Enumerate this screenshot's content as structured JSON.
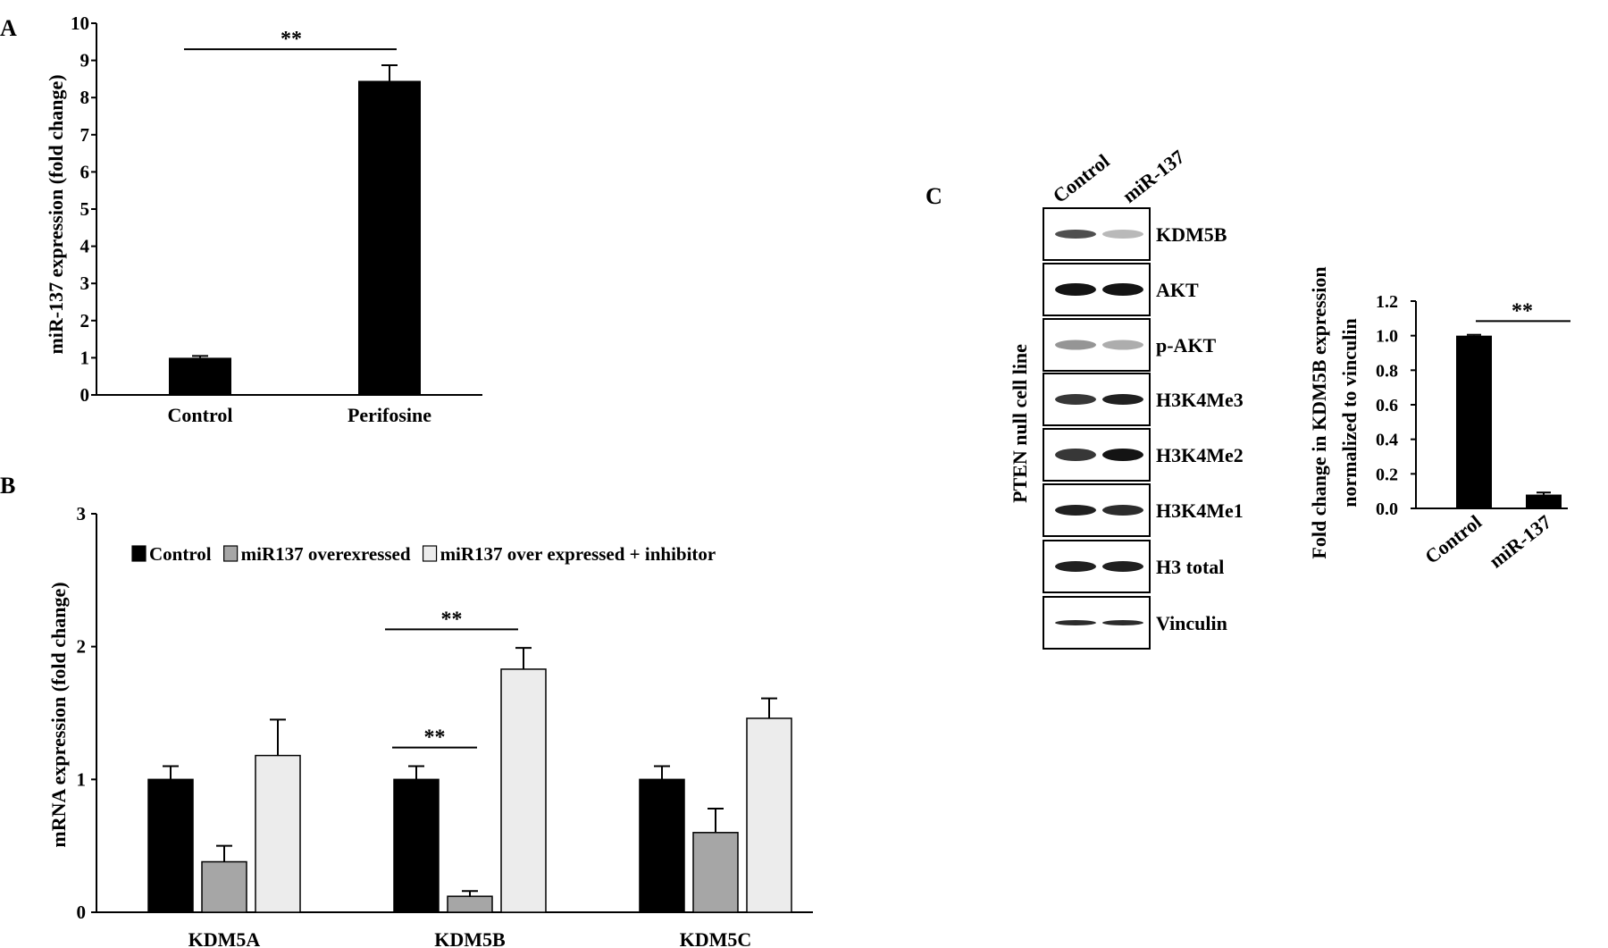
{
  "panels": {
    "a": "A",
    "b": "B",
    "c": "C"
  },
  "chart_data": [
    {
      "panel": "A",
      "type": "bar",
      "categories": [
        "Control",
        "Perifosine"
      ],
      "values": [
        1.0,
        8.45
      ],
      "errors": [
        0.05,
        0.42
      ],
      "ylabel": "miR-137 expression (fold change)",
      "yticks": [
        "0",
        "1",
        "2",
        "3",
        "4",
        "5",
        "6",
        "7",
        "8",
        "9",
        "10"
      ],
      "ylim": [
        0,
        10
      ],
      "colors": [
        "#000000"
      ],
      "significance": [
        {
          "from": 0,
          "to": 1,
          "label": "**",
          "y": 9.3
        }
      ]
    },
    {
      "panel": "B",
      "type": "bar",
      "categories": [
        "KDM5A",
        "KDM5B",
        "KDM5C"
      ],
      "series": [
        {
          "name": "Control",
          "color": "#000000",
          "values": [
            1.0,
            1.0,
            1.0
          ],
          "errors": [
            0.1,
            0.1,
            0.1
          ]
        },
        {
          "name": "miR137 overexressed",
          "color": "#a6a6a6",
          "values": [
            0.38,
            0.12,
            0.6
          ],
          "errors": [
            0.12,
            0.04,
            0.18
          ]
        },
        {
          "name": "miR137 over expressed + inhibitor",
          "color": "#ececec",
          "values": [
            1.18,
            1.83,
            1.46
          ],
          "errors": [
            0.27,
            0.16,
            0.15
          ]
        }
      ],
      "ylabel": "mRNA expression (fold change)",
      "yticks": [
        "0",
        "1",
        "2",
        "3"
      ],
      "ylim": [
        0,
        3
      ],
      "legend_position": "top",
      "significance": [
        {
          "category": 1,
          "from": 0,
          "to": 1,
          "label": "**",
          "y": 1.24
        },
        {
          "category": 1,
          "from": 0,
          "to": 2,
          "label": "**",
          "y": 2.13
        }
      ]
    },
    {
      "panel": "C",
      "type": "bar",
      "categories": [
        "Control",
        "miR-137"
      ],
      "values": [
        1.0,
        0.08
      ],
      "errors": [
        0.005,
        0.012
      ],
      "ylabel_lines": [
        "Fold change in KDM5B expression",
        "normalized to vinculin"
      ],
      "yticks": [
        "0.0",
        "0.2",
        "0.4",
        "0.6",
        "0.8",
        "1.0",
        "1.2"
      ],
      "ylim": [
        0,
        1.2
      ],
      "colors": [
        "#000000"
      ],
      "significance": [
        {
          "from": 0,
          "to": 1,
          "label": "**",
          "y": 1.1
        }
      ]
    }
  ],
  "blot": {
    "columns": [
      "Control",
      "miR-137"
    ],
    "side_label": "PTEN null cell line",
    "rows": [
      {
        "label": "KDM5B",
        "left": 0.75,
        "right": 0.3,
        "band": 10
      },
      {
        "label": "AKT",
        "left": 1.0,
        "right": 1.0,
        "band": 14
      },
      {
        "label": "p-AKT",
        "left": 0.45,
        "right": 0.35,
        "band": 11
      },
      {
        "label": "H3K4Me3",
        "left": 0.85,
        "right": 0.95,
        "band": 12
      },
      {
        "label": "H3K4Me2",
        "left": 0.85,
        "right": 1.0,
        "band": 14
      },
      {
        "label": "H3K4Me1",
        "left": 0.95,
        "right": 0.9,
        "band": 12
      },
      {
        "label": "H3 total",
        "left": 0.95,
        "right": 0.95,
        "band": 12
      },
      {
        "label": "Vinculin",
        "left": 0.9,
        "right": 0.9,
        "band": 6
      }
    ]
  }
}
